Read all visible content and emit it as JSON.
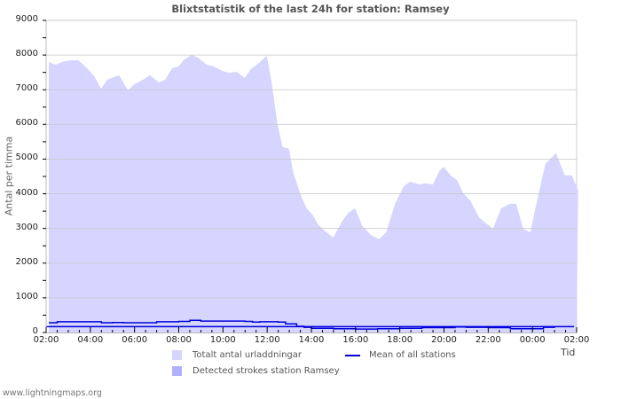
{
  "chart_data": {
    "type": "area",
    "title": "Blixtstatistik of the last 24h for station: Ramsey",
    "xlabel": "Tid",
    "ylabel": "Antal per timma",
    "ylim": [
      0,
      9000
    ],
    "yticks": [
      "0",
      "1000",
      "2000",
      "3000",
      "4000",
      "5000",
      "6000",
      "7000",
      "8000",
      "9000"
    ],
    "xticks": [
      "02:00",
      "04:00",
      "06:00",
      "08:00",
      "10:00",
      "12:00",
      "14:00",
      "16:00",
      "18:00",
      "20:00",
      "22:00",
      "00:00",
      "02:00"
    ],
    "grid": true,
    "legend_position": "bottom",
    "series": [
      {
        "name": "Totalt antal urladdningar",
        "type": "area",
        "color": "#d5d5ff",
        "x": [
          "02:08",
          "02:25",
          "02:44",
          "03:04",
          "03:28",
          "03:53",
          "04:10",
          "04:29",
          "04:46",
          "05:18",
          "05:42",
          "05:59",
          "06:23",
          "06:42",
          "07:06",
          "07:23",
          "07:42",
          "07:59",
          "08:16",
          "08:35",
          "08:52",
          "09:16",
          "09:35",
          "09:59",
          "10:18",
          "10:37",
          "10:59",
          "11:16",
          "11:35",
          "11:59",
          "12:11",
          "12:28",
          "12:42",
          "12:59",
          "13:11",
          "13:31",
          "13:47",
          "14:04",
          "14:18",
          "14:35",
          "14:59",
          "15:23",
          "15:40",
          "15:59",
          "16:18",
          "16:42",
          "17:04",
          "17:23",
          "17:47",
          "18:11",
          "18:28",
          "18:52",
          "19:11",
          "19:30",
          "19:47",
          "19:59",
          "20:18",
          "20:35",
          "20:52",
          "21:11",
          "21:35",
          "21:54",
          "22:13",
          "22:35",
          "22:59",
          "23:16",
          "23:35",
          "23:54",
          "24:16",
          "24:35",
          "25:04",
          "25:28",
          "25:47",
          "26:04"
        ],
        "values": [
          7800,
          7720,
          7800,
          7850,
          7850,
          7600,
          7400,
          7030,
          7290,
          7420,
          6980,
          7160,
          7290,
          7420,
          7210,
          7290,
          7620,
          7670,
          7880,
          8000,
          7930,
          7720,
          7670,
          7540,
          7490,
          7520,
          7340,
          7600,
          7750,
          7980,
          7290,
          6010,
          5350,
          5300,
          4600,
          3960,
          3580,
          3380,
          3120,
          2940,
          2740,
          3200,
          3450,
          3580,
          3070,
          2810,
          2690,
          2890,
          3710,
          4220,
          4350,
          4270,
          4300,
          4270,
          4650,
          4780,
          4530,
          4400,
          4020,
          3810,
          3320,
          3150,
          2990,
          3580,
          3710,
          3710,
          2990,
          2890,
          3960,
          4860,
          5170,
          4530,
          4530,
          4090
        ]
      },
      {
        "name": "Detected strokes station Ramsey",
        "type": "area",
        "color": "#b0b0ff",
        "values": []
      },
      {
        "name": "Mean of all stations",
        "type": "line",
        "color": "#0000dd",
        "x": [
          "02:00",
          "02:30",
          "04:00",
          "04:30",
          "05:00",
          "05:30",
          "07:00",
          "08:00",
          "08:30",
          "09:00",
          "10:00",
          "11:00",
          "11:20",
          "11:40",
          "12:30",
          "12:50",
          "13:20",
          "13:40",
          "14:00",
          "15:00",
          "16:00",
          "17:00",
          "18:00",
          "19:00",
          "20:00",
          "20:30",
          "21:00",
          "22:00",
          "23:00",
          "00:00",
          "00:30",
          "01:00",
          "02:00"
        ],
        "values": [
          280,
          310,
          310,
          280,
          290,
          280,
          310,
          320,
          350,
          330,
          330,
          320,
          300,
          310,
          300,
          250,
          180,
          150,
          120,
          110,
          100,
          110,
          120,
          140,
          140,
          160,
          150,
          140,
          110,
          110,
          150,
          170,
          170
        ]
      }
    ]
  },
  "footer": {
    "source": "www.lightningmaps.org"
  }
}
